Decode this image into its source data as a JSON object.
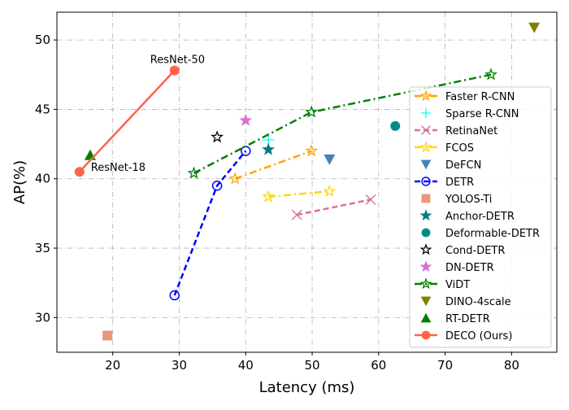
{
  "chart_data": {
    "type": "scatter",
    "title": "",
    "xlabel": "Latency (ms)",
    "ylabel": "AP(%)",
    "xlim": [
      11.6,
      86.8
    ],
    "ylim": [
      27.5,
      52.0
    ],
    "xticks": [
      20,
      30,
      40,
      50,
      60,
      70,
      80
    ],
    "yticks": [
      30,
      35,
      40,
      45,
      50
    ],
    "grid": true,
    "legend_position": "right",
    "series": [
      {
        "name": "Faster R-CNN",
        "color": "#FFA500",
        "marker": "star-open",
        "line": "dashdot",
        "x": [
          38.4,
          49.9
        ],
        "y": [
          40.0,
          42.0
        ]
      },
      {
        "name": "Sparse R-CNN",
        "color": "#00FFFF",
        "marker": "plus",
        "line": "none",
        "x": [
          43.4
        ],
        "y": [
          42.8
        ]
      },
      {
        "name": "RetinaNet",
        "color": "#DB7093",
        "marker": "x",
        "line": "dashed",
        "x": [
          47.7,
          58.8
        ],
        "y": [
          37.4,
          38.5
        ]
      },
      {
        "name": "FCOS",
        "color": "#FFD700",
        "marker": "star-open",
        "line": "dashdot",
        "x": [
          43.4,
          52.6
        ],
        "y": [
          38.7,
          39.1
        ]
      },
      {
        "name": "DeFCN",
        "color": "#4682B4",
        "marker": "triangle-down",
        "line": "none",
        "x": [
          52.6
        ],
        "y": [
          41.4
        ]
      },
      {
        "name": "DETR",
        "color": "#0000FF",
        "marker": "circle-open",
        "line": "dashed",
        "x": [
          29.3,
          35.7,
          40.0
        ],
        "y": [
          31.6,
          39.5,
          42.0
        ]
      },
      {
        "name": "YOLOS-Ti",
        "color": "#E9967A",
        "marker": "square",
        "line": "none",
        "x": [
          19.2
        ],
        "y": [
          28.7
        ]
      },
      {
        "name": "Anchor-DETR",
        "color": "#008080",
        "marker": "star",
        "line": "none",
        "x": [
          43.4
        ],
        "y": [
          42.1
        ]
      },
      {
        "name": "Deformable-DETR",
        "color": "#008B8B",
        "marker": "circle",
        "line": "none",
        "x": [
          62.5
        ],
        "y": [
          43.8
        ]
      },
      {
        "name": "Cond-DETR",
        "color": "#000000",
        "marker": "star-open",
        "line": "none",
        "x": [
          35.7
        ],
        "y": [
          43.0
        ]
      },
      {
        "name": "DN-DETR",
        "color": "#DA70D6",
        "marker": "star",
        "line": "none",
        "x": [
          40.0
        ],
        "y": [
          44.2
        ]
      },
      {
        "name": "ViDT",
        "color": "#008000",
        "marker": "star-open",
        "line": "dashdot",
        "x": [
          32.2,
          49.9,
          76.9
        ],
        "y": [
          40.4,
          44.8,
          47.5
        ]
      },
      {
        "name": "DINO-4scale",
        "color": "#808000",
        "marker": "triangle-down",
        "line": "none",
        "x": [
          83.4
        ],
        "y": [
          50.9
        ]
      },
      {
        "name": "RT-DETR",
        "color": "#008000",
        "marker": "triangle-up",
        "line": "none",
        "x": [
          16.6
        ],
        "y": [
          41.7
        ]
      },
      {
        "name": "DECO (Ours)",
        "color": "#FF6347",
        "marker": "circle",
        "line": "solid",
        "x": [
          15.0,
          29.3
        ],
        "y": [
          40.5,
          47.8
        ]
      }
    ],
    "annotations": [
      {
        "text": "ResNet-18",
        "x": 15.0,
        "y": 40.5
      },
      {
        "text": "ResNet-50",
        "x": 29.3,
        "y": 47.8
      }
    ]
  }
}
